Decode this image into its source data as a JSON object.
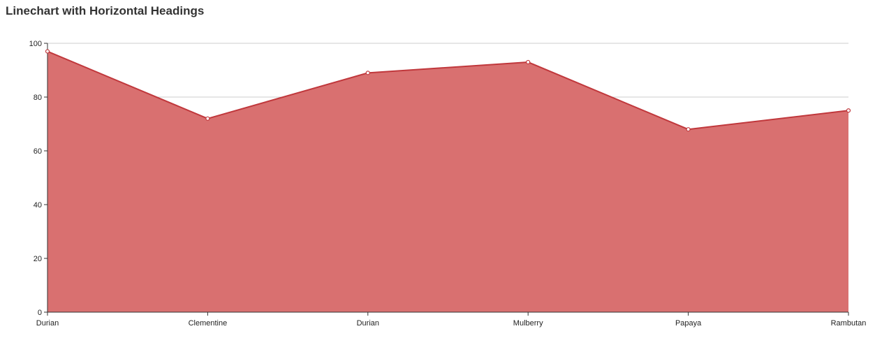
{
  "chart_data": {
    "type": "area",
    "title": "Linechart with Horizontal Headings",
    "categories": [
      "Durian",
      "Clementine",
      "Durian",
      "Mulberry",
      "Papaya",
      "Rambutan"
    ],
    "series": [
      {
        "values": [
          97,
          72,
          89,
          93,
          68,
          75
        ]
      }
    ],
    "ylim": [
      0,
      100
    ],
    "yticks": [
      0,
      20,
      40,
      60,
      80,
      100
    ],
    "grid": "horizontal",
    "legend": "none"
  },
  "colors": {
    "fill": "#d97070",
    "line": "#c0383c",
    "grid": "#cccccc",
    "axis": "#333333",
    "marker_fill": "#ffffff"
  }
}
